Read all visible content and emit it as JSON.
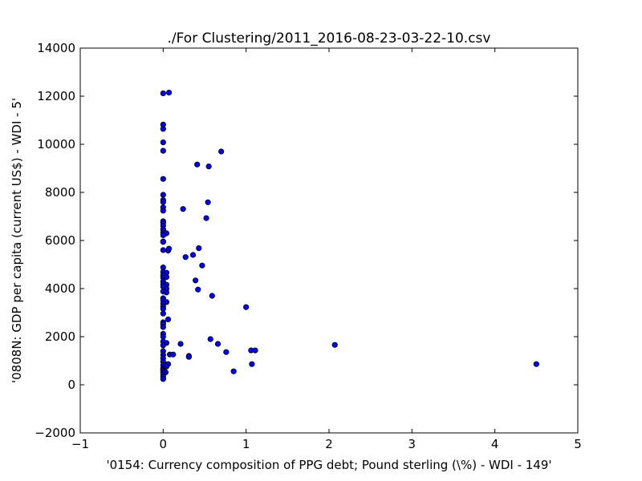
{
  "chart_data": {
    "type": "scatter",
    "title": "./For Clustering/2011_2016-08-23-03-22-10.csv",
    "xlabel": "'0154: Currency composition of PPG debt; Pound sterling  (\\%) - WDI - 149'",
    "ylabel": "'0808N: GDP per capita  (current US$) - WDI - 5'",
    "xlim": [
      -1,
      5
    ],
    "ylim": [
      -2000,
      14000
    ],
    "xticks": [
      -1,
      0,
      1,
      2,
      3,
      4,
      5
    ],
    "xtick_labels": [
      "−1",
      "0",
      "1",
      "2",
      "3",
      "4",
      "5"
    ],
    "yticks": [
      -2000,
      0,
      2000,
      4000,
      6000,
      8000,
      10000,
      12000,
      14000
    ],
    "ytick_labels": [
      "−2000",
      "0",
      "2000",
      "4000",
      "6000",
      "8000",
      "10000",
      "12000",
      "14000"
    ],
    "grid": false,
    "marker_color": "#0000ff",
    "points": [
      [
        0.0,
        12120
      ],
      [
        0.07,
        12150
      ],
      [
        0.0,
        10820
      ],
      [
        0.0,
        10640
      ],
      [
        0.0,
        10080
      ],
      [
        0.0,
        9730
      ],
      [
        0.7,
        9700
      ],
      [
        0.41,
        9160
      ],
      [
        0.55,
        9080
      ],
      [
        0.0,
        8560
      ],
      [
        0.0,
        7900
      ],
      [
        0.0,
        7680
      ],
      [
        0.0,
        7600
      ],
      [
        0.54,
        7590
      ],
      [
        0.0,
        7380
      ],
      [
        0.24,
        7310
      ],
      [
        0.0,
        7240
      ],
      [
        0.52,
        6930
      ],
      [
        0.0,
        6800
      ],
      [
        0.0,
        6740
      ],
      [
        0.0,
        6620
      ],
      [
        0.0,
        6460
      ],
      [
        0.0,
        6330
      ],
      [
        0.04,
        6300
      ],
      [
        0.0,
        6220
      ],
      [
        0.0,
        5960
      ],
      [
        0.0,
        5940
      ],
      [
        0.0,
        5600
      ],
      [
        0.06,
        5580
      ],
      [
        0.07,
        5660
      ],
      [
        0.43,
        5680
      ],
      [
        0.36,
        5400
      ],
      [
        0.27,
        5310
      ],
      [
        0.47,
        4960
      ],
      [
        0.0,
        4880
      ],
      [
        0.0,
        4700
      ],
      [
        0.04,
        4660
      ],
      [
        0.0,
        4560
      ],
      [
        0.0,
        4460
      ],
      [
        0.04,
        4480
      ],
      [
        0.0,
        4300
      ],
      [
        0.39,
        4340
      ],
      [
        0.0,
        4200
      ],
      [
        0.04,
        4160
      ],
      [
        0.0,
        4080
      ],
      [
        0.04,
        4000
      ],
      [
        0.42,
        3960
      ],
      [
        0.0,
        3880
      ],
      [
        0.04,
        3840
      ],
      [
        0.59,
        3700
      ],
      [
        0.0,
        3600
      ],
      [
        0.0,
        3520
      ],
      [
        0.04,
        3440
      ],
      [
        0.0,
        3380
      ],
      [
        0.0,
        3260
      ],
      [
        1.0,
        3230
      ],
      [
        0.0,
        3160
      ],
      [
        0.0,
        2960
      ],
      [
        0.06,
        2720
      ],
      [
        0.0,
        2600
      ],
      [
        0.0,
        2520
      ],
      [
        0.0,
        2400
      ],
      [
        0.0,
        2120
      ],
      [
        0.0,
        2000
      ],
      [
        0.57,
        1900
      ],
      [
        0.0,
        1800
      ],
      [
        0.66,
        1700
      ],
      [
        0.04,
        1740
      ],
      [
        0.21,
        1700
      ],
      [
        2.07,
        1660
      ],
      [
        0.0,
        1640
      ],
      [
        1.06,
        1430
      ],
      [
        1.11,
        1430
      ],
      [
        0.76,
        1360
      ],
      [
        0.0,
        1400
      ],
      [
        0.08,
        1260
      ],
      [
        0.12,
        1260
      ],
      [
        0.0,
        1240
      ],
      [
        0.31,
        1200
      ],
      [
        0.31,
        1160
      ],
      [
        0.0,
        1100
      ],
      [
        0.0,
        960
      ],
      [
        0.06,
        860
      ],
      [
        1.07,
        860
      ],
      [
        4.5,
        860
      ],
      [
        0.0,
        820
      ],
      [
        0.04,
        760
      ],
      [
        0.0,
        700
      ],
      [
        0.0,
        640
      ],
      [
        0.0,
        600
      ],
      [
        0.0,
        560
      ],
      [
        0.85,
        560
      ],
      [
        0.03,
        520
      ],
      [
        0.0,
        480
      ],
      [
        0.0,
        400
      ],
      [
        0.0,
        320
      ],
      [
        0.0,
        240
      ]
    ]
  }
}
